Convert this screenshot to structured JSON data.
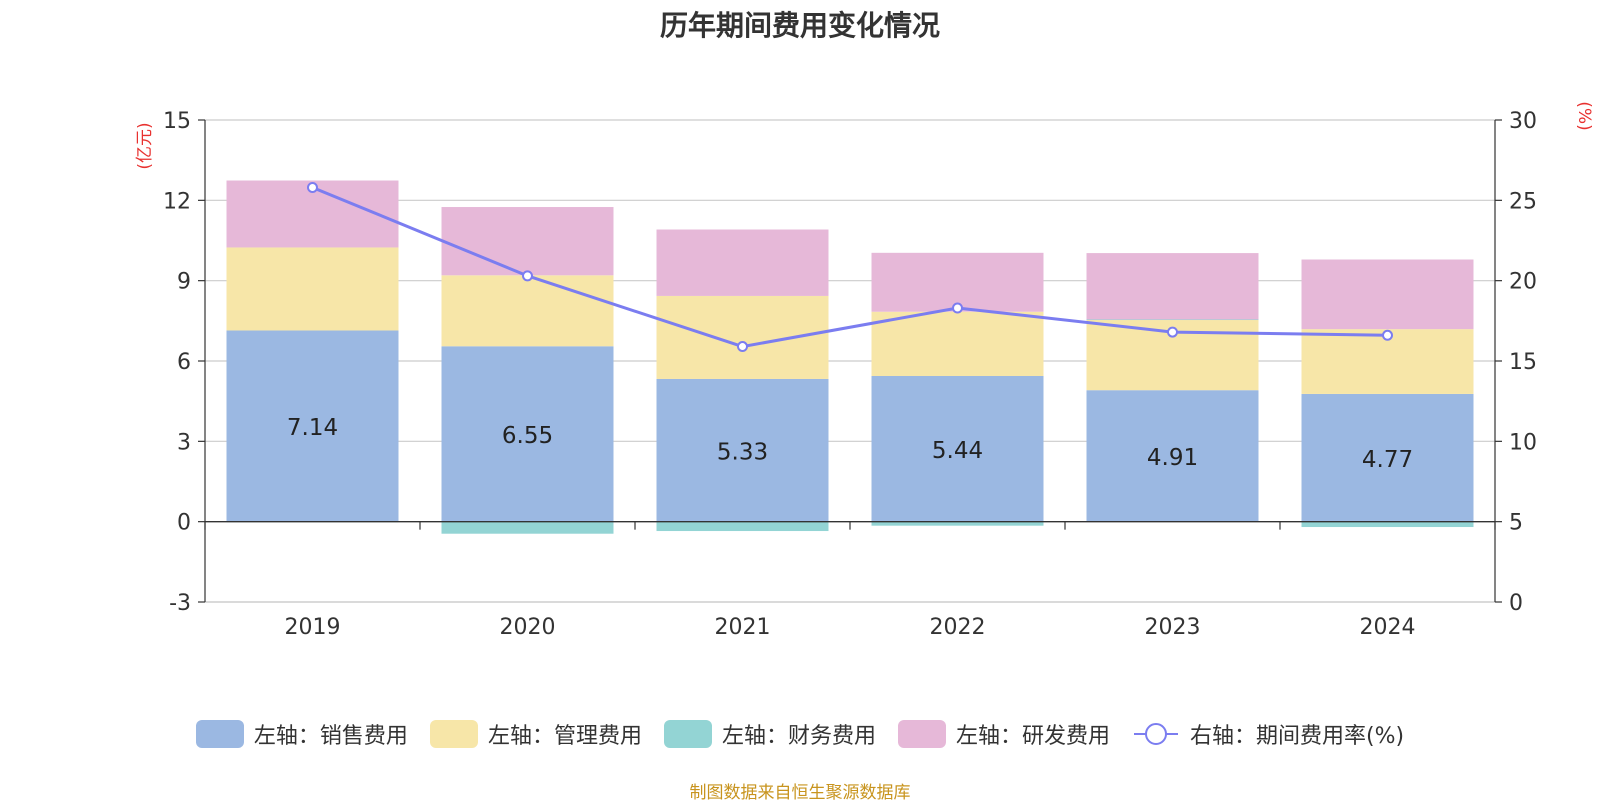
{
  "chart_data": {
    "type": "bar",
    "stacked": true,
    "title": "历年期间费用变化情况",
    "left_axis_unit": "(亿元)",
    "right_axis_unit": "(%)",
    "categories": [
      "2019",
      "2020",
      "2021",
      "2022",
      "2023",
      "2024"
    ],
    "left_ylim": [
      -3,
      15
    ],
    "left_ticks": [
      -3,
      0,
      3,
      6,
      9,
      12,
      15
    ],
    "right_ylim": [
      0,
      30
    ],
    "right_ticks": [
      0,
      5,
      10,
      15,
      20,
      25,
      30
    ],
    "grid": true,
    "legend_position": "bottom",
    "series": [
      {
        "name": "左轴：销售费用",
        "axis": "left",
        "color": "#9bb8e2",
        "values": [
          7.14,
          6.55,
          5.33,
          5.44,
          4.91,
          4.77
        ],
        "data_labels": [
          "7.14",
          "6.55",
          "5.33",
          "5.44",
          "4.91",
          "4.77"
        ]
      },
      {
        "name": "左轴：管理费用",
        "axis": "left",
        "color": "#f7e6a8",
        "values": [
          3.1,
          2.65,
          3.1,
          2.4,
          2.62,
          2.42
        ]
      },
      {
        "name": "左轴：财务费用",
        "axis": "left",
        "color": "#93d4d4",
        "values": [
          -0.02,
          -0.45,
          -0.35,
          -0.15,
          0.02,
          -0.2
        ]
      },
      {
        "name": "左轴：研发费用",
        "axis": "left",
        "color": "#e6b8d8",
        "values": [
          2.5,
          2.55,
          2.48,
          2.2,
          2.48,
          2.6
        ]
      },
      {
        "name": "右轴：期间费用率(%)",
        "axis": "right",
        "type": "line",
        "color": "#7b7df0",
        "values": [
          25.8,
          20.3,
          15.9,
          18.3,
          16.8,
          16.6
        ]
      }
    ]
  },
  "footer": "制图数据来自恒生聚源数据库"
}
